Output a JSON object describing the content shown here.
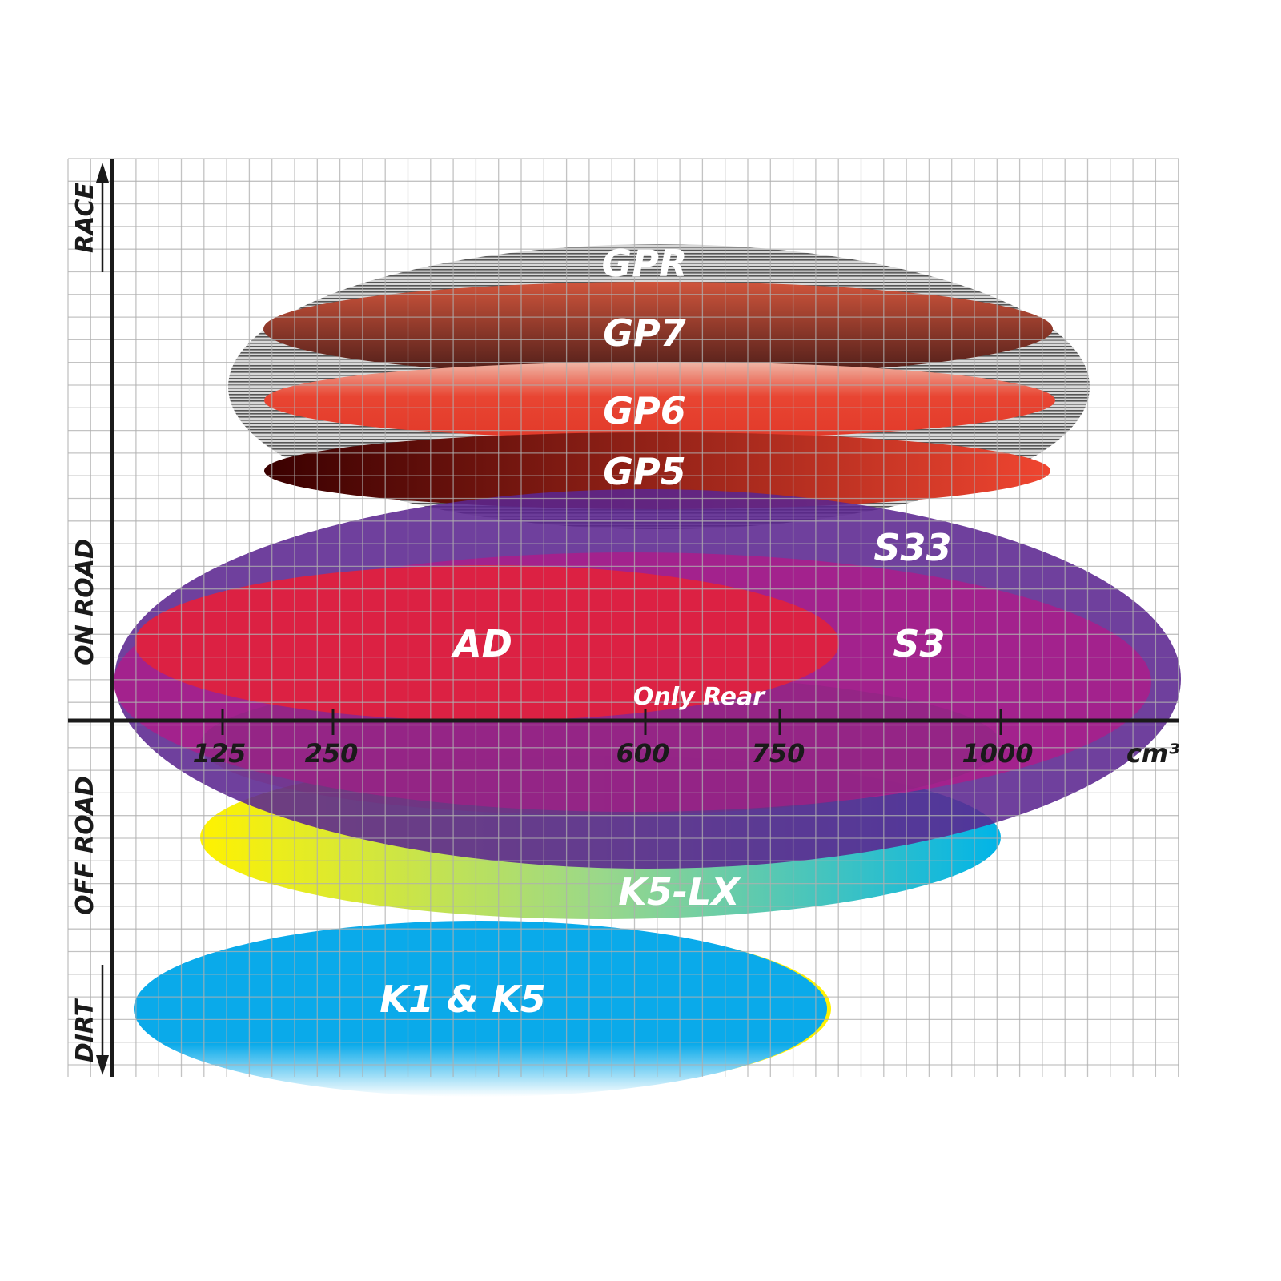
{
  "axes": {
    "y_labels": [
      "RACE",
      "ON ROAD",
      "OFF ROAD",
      "DIRT"
    ],
    "x_ticks": [
      "125",
      "250",
      "600",
      "750",
      "1000"
    ],
    "x_unit": "cm³"
  },
  "products": [
    {
      "name": "GPR",
      "color": "#b8b8b8"
    },
    {
      "name": "GP7",
      "color": "#a0402e"
    },
    {
      "name": "GP6",
      "color": "#e84532"
    },
    {
      "name": "GP5",
      "color": "#8a1a10"
    },
    {
      "name": "S33",
      "color": "#5e2a92"
    },
    {
      "name": "S3",
      "color": "#a3218e"
    },
    {
      "name": "AD",
      "color": "#dc2143"
    },
    {
      "name": "Only Rear",
      "color": "#8a2a80"
    },
    {
      "name": "K5-LX",
      "color": "#1ab8d8"
    },
    {
      "name": "K1 & K5",
      "color": "#0aaaea"
    }
  ]
}
